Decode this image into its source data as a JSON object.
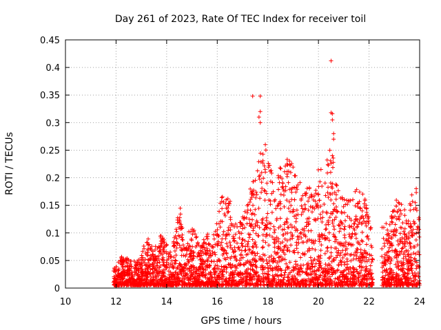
{
  "chart_data": {
    "type": "scatter",
    "title": "Day 261 of 2023, Rate Of TEC Index for receiver toil",
    "xlabel": "GPS time / hours",
    "ylabel": "ROTI / TECUs",
    "xlim": [
      10,
      24
    ],
    "ylim": [
      0,
      0.45
    ],
    "x_ticks": [
      "10",
      "12",
      "14",
      "16",
      "18",
      "20",
      "22",
      "24"
    ],
    "y_ticks": [
      "0",
      "0.05",
      "0.1",
      "0.15",
      "0.2",
      "0.25",
      "0.3",
      "0.35",
      "0.4",
      "0.45"
    ],
    "grid": true,
    "marker": "+",
    "marker_color": "#ff0000",
    "series": [
      {
        "name": "ROTI",
        "envelope": [
          {
            "x": 11.9,
            "y": 0.035
          },
          {
            "x": 12.2,
            "y": 0.06
          },
          {
            "x": 12.6,
            "y": 0.05
          },
          {
            "x": 13.0,
            "y": 0.06
          },
          {
            "x": 13.2,
            "y": 0.1
          },
          {
            "x": 13.5,
            "y": 0.07
          },
          {
            "x": 13.8,
            "y": 0.1
          },
          {
            "x": 14.2,
            "y": 0.06
          },
          {
            "x": 14.5,
            "y": 0.155
          },
          {
            "x": 14.8,
            "y": 0.1
          },
          {
            "x": 15.0,
            "y": 0.115
          },
          {
            "x": 15.3,
            "y": 0.08
          },
          {
            "x": 15.6,
            "y": 0.11
          },
          {
            "x": 15.9,
            "y": 0.1
          },
          {
            "x": 16.1,
            "y": 0.17
          },
          {
            "x": 16.5,
            "y": 0.175
          },
          {
            "x": 16.8,
            "y": 0.12
          },
          {
            "x": 17.1,
            "y": 0.14
          },
          {
            "x": 17.4,
            "y": 0.2
          },
          {
            "x": 17.7,
            "y": 0.25
          },
          {
            "x": 17.9,
            "y": 0.26
          },
          {
            "x": 18.2,
            "y": 0.2
          },
          {
            "x": 18.5,
            "y": 0.22
          },
          {
            "x": 18.9,
            "y": 0.245
          },
          {
            "x": 19.2,
            "y": 0.2
          },
          {
            "x": 19.6,
            "y": 0.18
          },
          {
            "x": 20.0,
            "y": 0.215
          },
          {
            "x": 20.3,
            "y": 0.24
          },
          {
            "x": 20.5,
            "y": 0.26
          },
          {
            "x": 20.8,
            "y": 0.19
          },
          {
            "x": 21.1,
            "y": 0.16
          },
          {
            "x": 21.5,
            "y": 0.18
          },
          {
            "x": 21.8,
            "y": 0.17
          },
          {
            "x": 22.1,
            "y": 0.11
          },
          {
            "x": 22.6,
            "y": 0.11
          },
          {
            "x": 22.9,
            "y": 0.14
          },
          {
            "x": 23.2,
            "y": 0.18
          },
          {
            "x": 23.5,
            "y": 0.13
          },
          {
            "x": 23.8,
            "y": 0.2
          },
          {
            "x": 24.0,
            "y": 0.16
          }
        ],
        "gaps": [
          [
            22.15,
            22.5
          ]
        ],
        "outliers": [
          {
            "x": 17.4,
            "y": 0.348
          },
          {
            "x": 17.7,
            "y": 0.348
          },
          {
            "x": 17.7,
            "y": 0.32
          },
          {
            "x": 17.65,
            "y": 0.31
          },
          {
            "x": 17.7,
            "y": 0.3
          },
          {
            "x": 17.9,
            "y": 0.26
          },
          {
            "x": 20.5,
            "y": 0.412
          },
          {
            "x": 20.5,
            "y": 0.318
          },
          {
            "x": 20.55,
            "y": 0.316
          },
          {
            "x": 20.55,
            "y": 0.305
          },
          {
            "x": 20.6,
            "y": 0.28
          },
          {
            "x": 20.6,
            "y": 0.27
          },
          {
            "x": 20.55,
            "y": 0.24
          },
          {
            "x": 20.45,
            "y": 0.25
          },
          {
            "x": 20.1,
            "y": 0.215
          }
        ]
      }
    ]
  }
}
